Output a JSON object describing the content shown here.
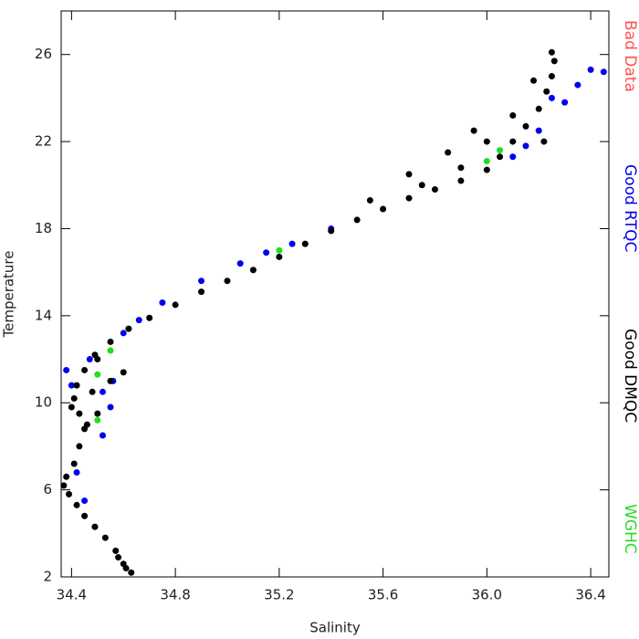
{
  "chart_data": {
    "type": "scatter",
    "xlabel": "Salinity",
    "ylabel": "Temperature",
    "xlim": [
      34.36,
      36.47
    ],
    "ylim": [
      2,
      28
    ],
    "xticks": [
      34.4,
      34.8,
      35.2,
      35.6,
      {
        "value": 36,
        "label": "36.0"
      },
      36.4
    ],
    "yticks": [
      2,
      6,
      10,
      14,
      18,
      22,
      26
    ],
    "legend": "right",
    "series": [
      {
        "name": "Bad Data",
        "color": "#ff5050",
        "x": [],
        "values": []
      },
      {
        "name": "Good RTQC",
        "color": "#0000ee",
        "x": [
          34.4,
          34.52,
          34.55,
          34.42,
          34.45,
          34.6,
          34.75,
          34.9,
          35.05,
          35.25,
          35.4,
          36.1,
          36.2,
          36.3,
          36.35,
          36.4,
          36.45,
          34.52,
          34.47,
          36.15,
          34.38,
          34.56,
          34.66,
          35.15,
          36.25
        ],
        "values": [
          10.8,
          10.5,
          9.8,
          6.8,
          5.5,
          13.2,
          14.6,
          15.6,
          16.4,
          17.3,
          18.0,
          21.3,
          22.5,
          23.8,
          24.6,
          25.3,
          25.2,
          8.5,
          12.0,
          21.8,
          11.5,
          11.0,
          13.8,
          16.9,
          24.0
        ]
      },
      {
        "name": "Good DMQC",
        "color": "#000000",
        "x": [
          34.63,
          34.6,
          34.57,
          34.53,
          34.49,
          34.45,
          34.42,
          34.39,
          34.37,
          34.38,
          34.41,
          34.43,
          34.45,
          34.43,
          34.41,
          34.42,
          34.45,
          34.49,
          34.55,
          34.62,
          34.7,
          34.8,
          34.9,
          35.0,
          35.1,
          35.2,
          35.3,
          35.4,
          35.5,
          35.6,
          35.7,
          35.8,
          35.9,
          36.0,
          36.05,
          36.1,
          36.15,
          36.2,
          36.23,
          36.25,
          36.26,
          36.25,
          34.55,
          34.6,
          34.5,
          34.48,
          35.85,
          35.95,
          36.0,
          35.7,
          35.9,
          36.1,
          34.4,
          34.46,
          34.5,
          35.55,
          35.75,
          36.18,
          36.22,
          34.61,
          34.58
        ],
        "values": [
          2.2,
          2.6,
          3.2,
          3.8,
          4.3,
          4.8,
          5.3,
          5.8,
          6.2,
          6.6,
          7.2,
          8.0,
          8.8,
          9.5,
          10.2,
          10.8,
          11.5,
          12.2,
          12.8,
          13.4,
          13.9,
          14.5,
          15.1,
          15.6,
          16.1,
          16.7,
          17.3,
          17.9,
          18.4,
          18.9,
          19.4,
          19.8,
          20.2,
          20.7,
          21.3,
          22.0,
          22.7,
          23.5,
          24.3,
          25.0,
          25.7,
          26.1,
          11.0,
          11.4,
          9.5,
          10.5,
          21.5,
          22.5,
          22.0,
          20.5,
          20.8,
          23.2,
          9.8,
          9.0,
          12.0,
          19.3,
          20.0,
          24.8,
          22.0,
          2.4,
          2.9
        ]
      },
      {
        "name": "WGHC",
        "color": "#22dd22",
        "x": [
          34.5,
          34.5,
          35.2,
          34.55,
          36.0,
          36.05
        ],
        "values": [
          9.2,
          11.3,
          17.0,
          12.4,
          21.1,
          21.6
        ]
      }
    ]
  }
}
